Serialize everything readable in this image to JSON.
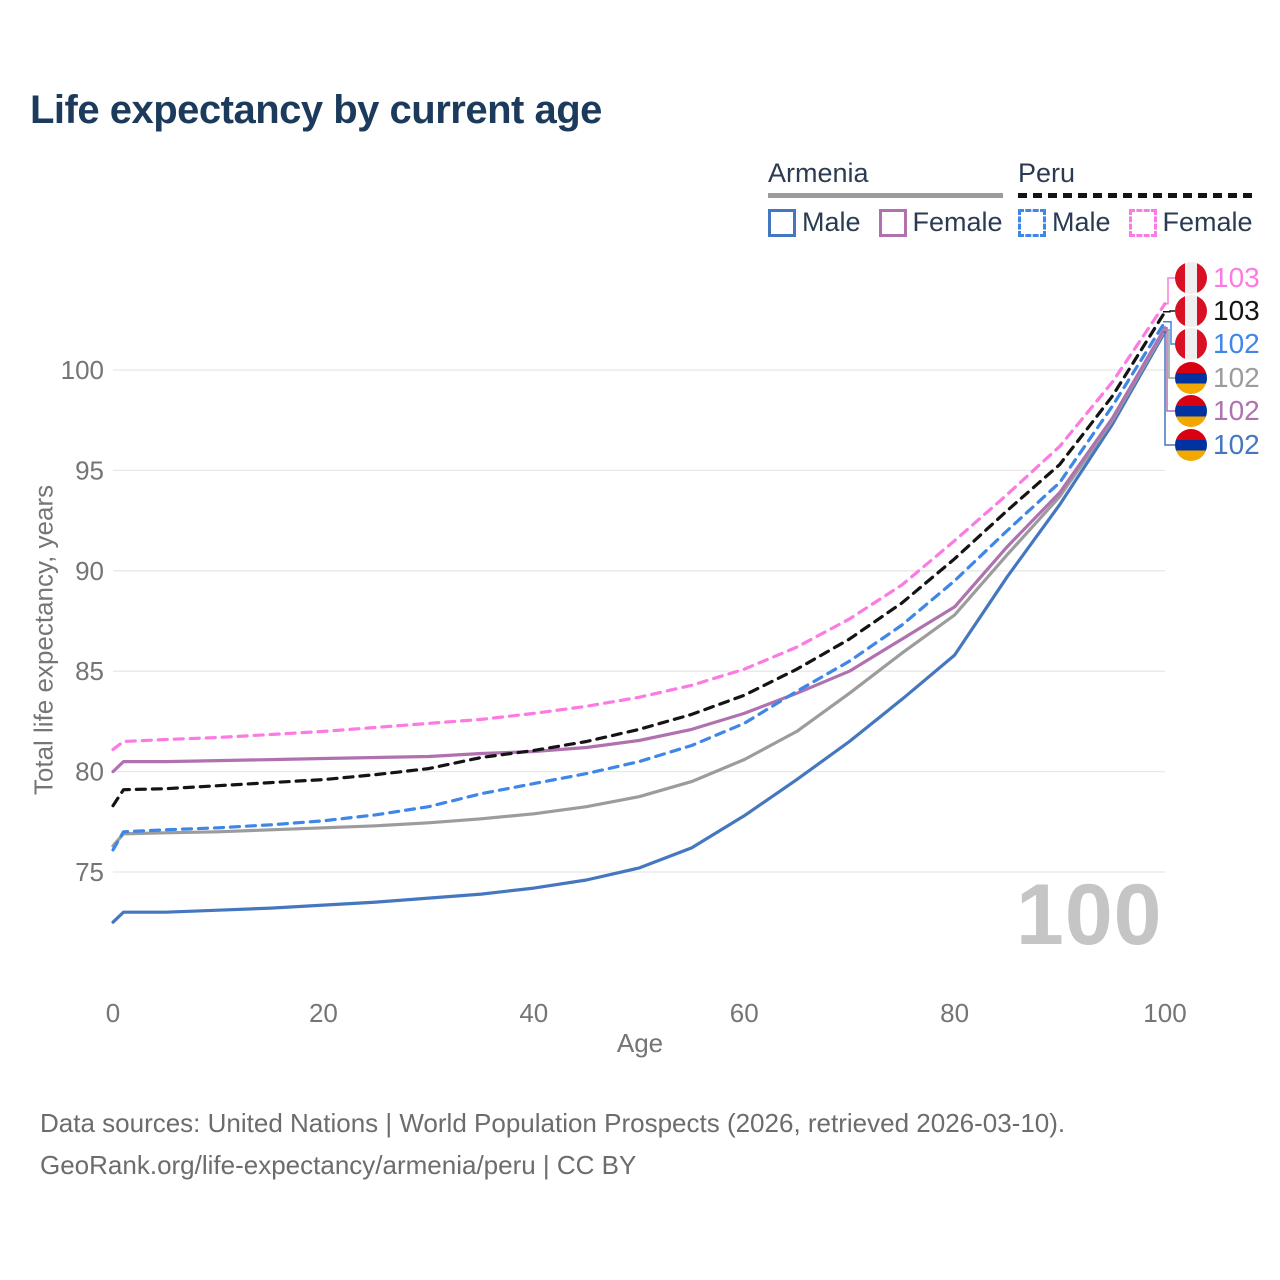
{
  "title": "Life expectancy by current age",
  "legend": {
    "armenia": {
      "label": "Armenia",
      "underline_color": "#9c9c9c",
      "male_label": "Male",
      "female_label": "Female",
      "male_color": "#4477c0",
      "female_color": "#af72af"
    },
    "peru": {
      "label": "Peru",
      "underline_color": "#141414",
      "male_label": "Male",
      "female_label": "Female",
      "male_color": "#3e86e8",
      "female_color": "#fb7be2"
    }
  },
  "y_axis": {
    "title": "Total life expectancy, years",
    "ticks": [
      75,
      80,
      85,
      90,
      95,
      100
    ]
  },
  "x_axis": {
    "title": "Age",
    "ticks": [
      0,
      20,
      40,
      60,
      80,
      100
    ]
  },
  "watermark": "100",
  "end_labels": [
    {
      "value": "103",
      "flag": "peru",
      "series": "peru_female",
      "color": "#fb7be2"
    },
    {
      "value": "103",
      "flag": "peru",
      "series": "peru_avg",
      "color": "#141414"
    },
    {
      "value": "102",
      "flag": "peru",
      "series": "peru_male",
      "color": "#3e86e8"
    },
    {
      "value": "102",
      "flag": "armenia",
      "series": "armenia_avg",
      "color": "#9c9c9c"
    },
    {
      "value": "102",
      "flag": "armenia",
      "series": "armenia_female",
      "color": "#af72af"
    },
    {
      "value": "102",
      "flag": "armenia",
      "series": "armenia_male",
      "color": "#4477c0"
    }
  ],
  "footer": {
    "line1": "Data sources: United Nations | World Population Prospects (2026, retrieved 2026-03-10).",
    "line2": "GeoRank.org/life-expectancy/armenia/peru | CC BY"
  },
  "chart_data": {
    "type": "line",
    "title": "Life expectancy by current age",
    "xlabel": "Age",
    "ylabel": "Total life expectancy, years",
    "xlim": [
      0,
      100
    ],
    "ylim": [
      72,
      104
    ],
    "grid": "horizontal",
    "legend_position": "top-right",
    "x": [
      0,
      1,
      5,
      10,
      15,
      20,
      25,
      30,
      35,
      40,
      45,
      50,
      55,
      60,
      65,
      70,
      75,
      80,
      85,
      90,
      95,
      100
    ],
    "series": [
      {
        "key": "armenia_male",
        "name": "Armenia Male",
        "style": "solid",
        "color": "#4477c0",
        "values": [
          72.5,
          73.0,
          73.0,
          73.1,
          73.2,
          73.35,
          73.5,
          73.7,
          73.9,
          74.2,
          74.6,
          75.2,
          76.2,
          77.8,
          79.6,
          81.5,
          83.6,
          85.8,
          89.7,
          93.3,
          97.3,
          101.9
        ]
      },
      {
        "key": "armenia_avg",
        "name": "Armenia Average",
        "style": "solid",
        "color": "#9c9c9c",
        "values": [
          76.3,
          76.9,
          76.95,
          77.0,
          77.1,
          77.2,
          77.3,
          77.45,
          77.65,
          77.9,
          78.25,
          78.75,
          79.5,
          80.6,
          82.0,
          83.9,
          85.9,
          87.8,
          90.8,
          93.7,
          97.5,
          102.0
        ]
      },
      {
        "key": "armenia_female",
        "name": "Armenia Female",
        "style": "solid",
        "color": "#af72af",
        "values": [
          80.0,
          80.5,
          80.5,
          80.55,
          80.6,
          80.65,
          80.7,
          80.75,
          80.9,
          81.0,
          81.2,
          81.55,
          82.1,
          82.9,
          83.9,
          85.0,
          86.6,
          88.2,
          91.2,
          93.9,
          97.6,
          102.1
        ]
      },
      {
        "key": "peru_male",
        "name": "Peru Male",
        "style": "dashed",
        "color": "#3e86e8",
        "values": [
          76.1,
          77.0,
          77.1,
          77.2,
          77.35,
          77.55,
          77.85,
          78.25,
          78.9,
          79.4,
          79.9,
          80.5,
          81.3,
          82.4,
          84.0,
          85.5,
          87.3,
          89.5,
          92.0,
          94.4,
          98.2,
          102.4
        ]
      },
      {
        "key": "peru_avg",
        "name": "Peru Average",
        "style": "dashed",
        "color": "#141414",
        "values": [
          78.3,
          79.1,
          79.15,
          79.3,
          79.45,
          79.6,
          79.85,
          80.15,
          80.7,
          81.05,
          81.5,
          82.1,
          82.85,
          83.8,
          85.1,
          86.6,
          88.4,
          90.6,
          93.0,
          95.3,
          98.7,
          102.9
        ]
      },
      {
        "key": "peru_female",
        "name": "Peru Female",
        "style": "dashed",
        "color": "#fb7be2",
        "values": [
          81.1,
          81.5,
          81.6,
          81.7,
          81.85,
          82.0,
          82.2,
          82.4,
          82.6,
          82.9,
          83.25,
          83.7,
          84.3,
          85.1,
          86.2,
          87.6,
          89.3,
          91.5,
          93.8,
          96.2,
          99.4,
          103.3
        ]
      }
    ]
  }
}
